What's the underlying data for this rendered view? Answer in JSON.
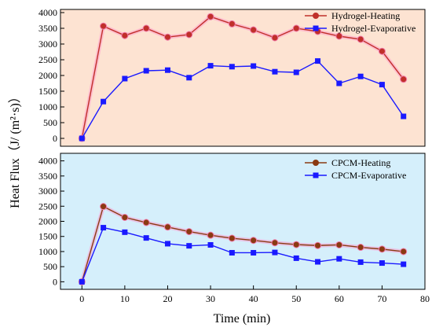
{
  "chart_data": [
    {
      "type": "line",
      "x": [
        0,
        5,
        10,
        15,
        20,
        25,
        30,
        35,
        40,
        45,
        50,
        55,
        60,
        65,
        70,
        75
      ],
      "xlim": [
        -5,
        80
      ],
      "ylim": [
        -250,
        4100
      ],
      "yticks": [
        0,
        500,
        1000,
        1500,
        2000,
        2500,
        3000,
        3500,
        4000
      ],
      "background": "#fde3d2",
      "legend_position": "top-right",
      "series": [
        {
          "name": "Hydrogel-Heating",
          "color": "#c0302a",
          "marker": "circle",
          "values": [
            0,
            3570,
            3270,
            3500,
            3220,
            3300,
            3870,
            3640,
            3450,
            3200,
            3500,
            3400,
            3250,
            3150,
            2770,
            1880
          ]
        },
        {
          "name": "Hydrogel-Evaporative",
          "color": "#1a1aff",
          "marker": "square",
          "values": [
            0,
            1170,
            1900,
            2150,
            2170,
            1930,
            2310,
            2280,
            2300,
            2120,
            2100,
            2460,
            1750,
            1970,
            1710,
            700
          ]
        }
      ]
    },
    {
      "type": "line",
      "x": [
        0,
        5,
        10,
        15,
        20,
        25,
        30,
        35,
        40,
        45,
        50,
        55,
        60,
        65,
        70,
        75
      ],
      "xlim": [
        -5,
        80
      ],
      "xticks": [
        0,
        10,
        20,
        30,
        40,
        50,
        60,
        70,
        80
      ],
      "ylim": [
        -250,
        4250
      ],
      "yticks": [
        0,
        500,
        1000,
        1500,
        2000,
        2500,
        3000,
        3500,
        4000
      ],
      "background": "#d5effb",
      "legend_position": "top-right",
      "series": [
        {
          "name": "CPCM-Heating",
          "color": "#8a3a12",
          "marker": "circle",
          "values": [
            0,
            2490,
            2130,
            1960,
            1810,
            1660,
            1540,
            1440,
            1370,
            1290,
            1230,
            1200,
            1220,
            1140,
            1080,
            1000
          ]
        },
        {
          "name": "CPCM-Evaporative",
          "color": "#1a1aff",
          "marker": "square",
          "values": [
            0,
            1790,
            1640,
            1450,
            1260,
            1190,
            1220,
            960,
            960,
            970,
            780,
            660,
            760,
            650,
            620,
            580
          ]
        }
      ]
    }
  ],
  "axes": {
    "xlabel": "Time (min)",
    "ylabel": "Heat Flux（J/ (m²·s)）"
  }
}
